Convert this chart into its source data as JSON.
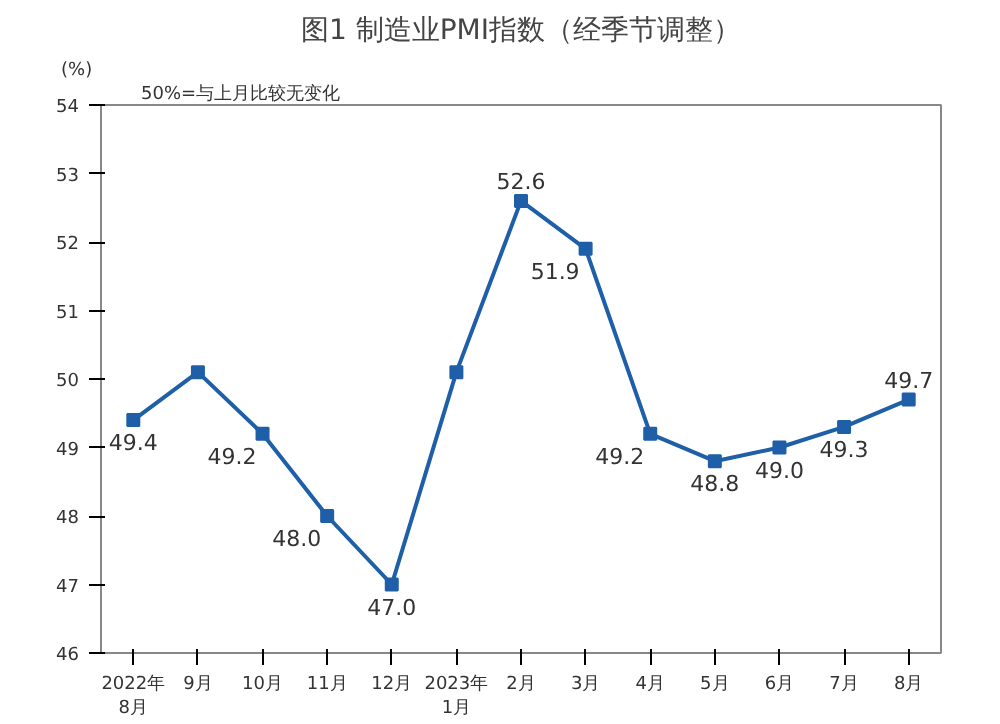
{
  "chart_data": {
    "type": "line",
    "title": "图1 制造业PMI指数（经季节调整）",
    "ylabel": "(%)",
    "annotations": [
      "50%=与上月比较无变化"
    ],
    "categories": [
      "2022年\n8月",
      "9月",
      "10月",
      "11月",
      "12月",
      "2023年\n1月",
      "2月",
      "3月",
      "4月",
      "5月",
      "6月",
      "7月",
      "8月"
    ],
    "series": [
      {
        "color": "#1f5fa8",
        "values": [
          49.4,
          50.1,
          49.2,
          48.0,
          47.0,
          50.1,
          52.6,
          51.9,
          49.2,
          48.8,
          49.0,
          49.3,
          49.7
        ],
        "value_labels": [
          "49.4",
          null,
          "49.2",
          "48.0",
          "47.0",
          null,
          "52.6",
          "51.9",
          "49.2",
          "48.8",
          "49.0",
          "49.3",
          "49.7"
        ]
      }
    ],
    "ylim": [
      46,
      54
    ],
    "yticks": [
      46,
      47,
      48,
      49,
      50,
      51,
      52,
      53,
      54
    ],
    "marker": "square",
    "line_style": "solid",
    "grid": false
  }
}
